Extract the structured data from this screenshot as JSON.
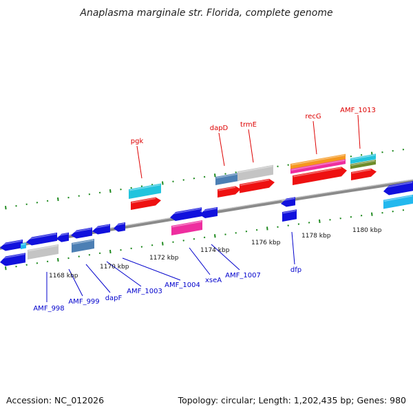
{
  "title": "Anaplasma marginale str. Florida, complete genome",
  "footer": {
    "accession": "Accession: NC_012026",
    "summary": "Topology: circular; Length: 1,202,435 bp; Genes: 980"
  },
  "colors": {
    "forward_label": "#dd0000",
    "reverse_label": "#0000cc",
    "backbone": "#8a8a8a",
    "tick": "#1f8a1f",
    "blue": "#1111dd",
    "cyan": "#22c4dd",
    "red": "#ee1111",
    "gray": "#c4c4c4",
    "steelblue": "#4c7fb4",
    "magenta": "#ee2e9f",
    "orange": "#f5971e",
    "olive": "#6e8c2a",
    "skyblue": "#22b8ee"
  },
  "scale_labels": [
    "1168 kbp",
    "1170 kbp",
    "1172 kbp",
    "1174 kbp",
    "1176 kbp",
    "1178 kbp",
    "1180 kbp"
  ],
  "forward_labels": [
    "pgk",
    "dapD",
    "trmE",
    "recG",
    "AMF_1013"
  ],
  "reverse_labels": [
    "AMF_998",
    "AMF_999",
    "dapF",
    "AMF_1003",
    "AMF_1004",
    "xseA",
    "AMF_1007",
    "dfp"
  ]
}
